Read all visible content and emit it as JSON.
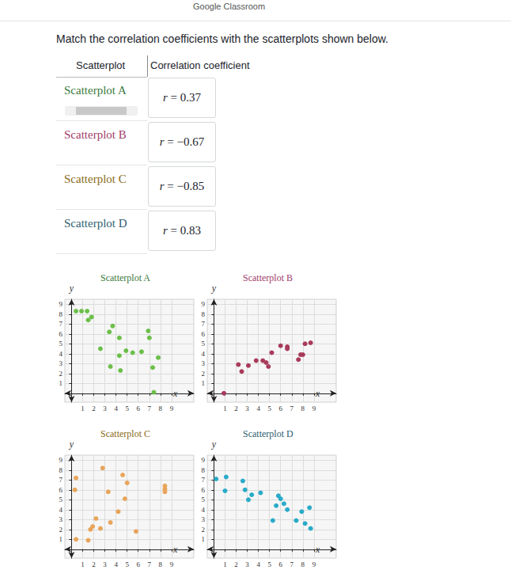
{
  "header": {
    "link": "Google Classroom"
  },
  "prompt": "Match the correlation coefficients with the scatterplots shown below.",
  "table": {
    "columns": [
      "Scatterplot",
      "Correlation coefficient"
    ],
    "rows": [
      [
        "Scatterplot A",
        "r = 0.37"
      ],
      [
        "Scatterplot B",
        "r = −0.67"
      ],
      [
        "Scatterplot C",
        "r = −0.85"
      ],
      [
        "Scatterplot D",
        "r = 0.83"
      ]
    ]
  },
  "chart_data": [
    {
      "type": "scatter",
      "title": "Scatterplot A",
      "x_label": "x",
      "y_label": "y",
      "color": "#6cbf4a",
      "marker": "circle",
      "grid": true,
      "x": [
        0.4,
        0.9,
        1.4,
        1.8,
        1.5,
        3.7,
        3.4,
        4.3,
        6.9,
        7.0,
        2.6,
        4.9,
        5.5,
        6.3,
        4.3,
        7.8,
        3.5,
        4.4,
        7.3,
        7.4
      ],
      "values": [
        8.3,
        8.3,
        8.3,
        7.7,
        7.4,
        6.8,
        6.2,
        5.6,
        6.3,
        5.6,
        4.5,
        4.3,
        4.1,
        4.2,
        3.8,
        3.6,
        2.7,
        2.3,
        2.6,
        0.1
      ],
      "xlim": [
        -0.6,
        11
      ],
      "ylim": [
        -0.9,
        9.5
      ],
      "xticks": [
        1,
        2,
        3,
        4,
        5,
        6,
        7,
        8,
        9
      ],
      "yticks": [
        1,
        2,
        3,
        4,
        5,
        6,
        7,
        8,
        9
      ]
    },
    {
      "type": "scatter",
      "title": "Scatterplot B",
      "x_label": "x",
      "y_label": "y",
      "color": "#a83a5a",
      "marker": "circle",
      "grid": true,
      "x": [
        0.9,
        2.2,
        3.1,
        2.5,
        3.8,
        4.4,
        4.7,
        4.9,
        5.2,
        6.0,
        6.6,
        6.6,
        7.8,
        8.0,
        7.6,
        8.2,
        8.7
      ],
      "values": [
        0,
        2.9,
        2.8,
        2.2,
        3.3,
        3.3,
        3.1,
        2.7,
        4.1,
        4.8,
        4.7,
        4.5,
        3.9,
        3.9,
        3.4,
        5.0,
        5.1
      ],
      "xlim": [
        -0.6,
        11
      ],
      "ylim": [
        -0.9,
        9.5
      ],
      "xticks": [
        1,
        2,
        3,
        4,
        5,
        6,
        7,
        8,
        9
      ],
      "yticks": [
        1,
        2,
        3,
        4,
        5,
        6,
        7,
        8,
        9
      ]
    },
    {
      "type": "scatter",
      "title": "Scatterplot C",
      "x_label": "x",
      "y_label": "y",
      "color": "#e8a55a",
      "marker": "circle",
      "grid": true,
      "x": [
        0.4,
        0.3,
        2.8,
        3.3,
        4.6,
        5.0,
        4.8,
        8.4,
        8.4,
        8.4,
        4.2,
        2.2,
        1.9,
        1.7,
        2.6,
        3.5,
        5.8,
        0.4,
        1.5
      ],
      "values": [
        7.2,
        6.0,
        8.2,
        5.8,
        7.5,
        6.7,
        5.1,
        6.4,
        6.1,
        5.8,
        3.8,
        3.1,
        2.3,
        2.0,
        2.1,
        2.7,
        1.8,
        1.0,
        0.9
      ],
      "xlim": [
        -0.6,
        11
      ],
      "ylim": [
        -0.9,
        9.5
      ],
      "xticks": [
        1,
        2,
        3,
        4,
        5,
        6,
        7,
        8,
        9
      ],
      "yticks": [
        1,
        2,
        3,
        4,
        5,
        6,
        7,
        8,
        9
      ]
    },
    {
      "type": "scatter",
      "title": "Scatterplot D",
      "x_label": "x",
      "y_label": "y",
      "color": "#29abc8",
      "marker": "circle",
      "grid": true,
      "x": [
        0.2,
        1.1,
        1.0,
        2.6,
        2.8,
        3.4,
        3.1,
        4.2,
        5.8,
        6.0,
        5.6,
        6.3,
        6.6,
        5.3,
        7.9,
        8.6,
        7.4,
        8.2,
        8.7
      ],
      "values": [
        7.1,
        7.3,
        5.9,
        6.9,
        6.0,
        5.5,
        5.0,
        5.7,
        5.4,
        5.1,
        4.4,
        4.6,
        4.0,
        2.9,
        3.8,
        4.2,
        2.9,
        2.6,
        2.1
      ],
      "xlim": [
        -0.6,
        11
      ],
      "ylim": [
        -0.9,
        9.5
      ],
      "xticks": [
        1,
        2,
        3,
        4,
        5,
        6,
        7,
        8,
        9
      ],
      "yticks": [
        1,
        2,
        3,
        4,
        5,
        6,
        7,
        8,
        9
      ]
    }
  ]
}
